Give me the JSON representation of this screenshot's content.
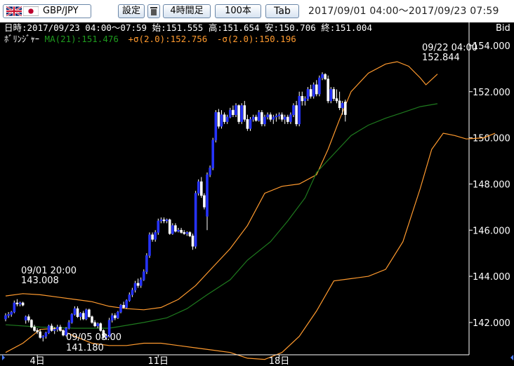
{
  "toolbar": {
    "pair": "GBP/JPY",
    "settings_label": "設定",
    "interval_label": "4時間足",
    "count_label": "100本",
    "tab_label": "Tab",
    "range": "2017/09/01 04:00〜2017/09/23 07:59"
  },
  "ohlc_line": "日時:2017/09/23 04:00〜07:59 始:151.555 高:151.654 安:150.706 終:151.004",
  "indicator": {
    "name": "ﾎﾞﾘﾝｼﾞｬｰ",
    "ma": "MA(21):151.476",
    "upper": "+σ(2.0):152.756",
    "lower": "-σ(2.0):150.196"
  },
  "price_type": "Bid",
  "colors": {
    "background": "#000000",
    "up_candle": "#2633ff",
    "down_candle": "#ffffff",
    "ma_line": "#1e7a1e",
    "bands": "#ff9a2e",
    "labels": "#ffffff"
  },
  "annotations": {
    "high1": {
      "time": "09/01 20:00",
      "price": "143.008"
    },
    "low": {
      "time": "09/05 08:00",
      "price": "141.180"
    },
    "high2": {
      "time": "09/22 04:00",
      "price": "152.844"
    }
  },
  "chart_data": {
    "type": "candlestick",
    "ylim": [
      140.6,
      155.0
    ],
    "y_ticks": [
      "154.000",
      "152.000",
      "150.000",
      "148.000",
      "146.000",
      "144.000",
      "142.000"
    ],
    "x_ticks": [
      {
        "label": "4日",
        "index": 11
      },
      {
        "label": "11日",
        "index": 53
      },
      {
        "label": "18日",
        "index": 95
      }
    ],
    "candles": [
      [
        142.15,
        142.4,
        142.05,
        142.3
      ],
      [
        142.3,
        142.45,
        142.2,
        142.35
      ],
      [
        142.35,
        142.5,
        142.25,
        142.45
      ],
      [
        142.45,
        142.95,
        142.4,
        142.85
      ],
      [
        142.85,
        143.01,
        142.7,
        142.8
      ],
      [
        142.8,
        142.9,
        142.7,
        142.85
      ],
      [
        142.85,
        142.9,
        142.7,
        142.75
      ],
      [
        142.1,
        142.3,
        141.95,
        142.25
      ],
      [
        142.25,
        142.35,
        142.0,
        142.1
      ],
      [
        142.1,
        142.15,
        141.75,
        141.8
      ],
      [
        141.8,
        141.9,
        141.6,
        141.65
      ],
      [
        141.65,
        141.75,
        141.5,
        141.6
      ],
      [
        141.6,
        141.7,
        141.3,
        141.35
      ],
      [
        141.35,
        141.45,
        141.18,
        141.4
      ],
      [
        141.4,
        141.6,
        141.3,
        141.55
      ],
      [
        141.55,
        141.9,
        141.5,
        141.85
      ],
      [
        141.85,
        141.95,
        141.6,
        141.65
      ],
      [
        141.65,
        141.8,
        141.5,
        141.7
      ],
      [
        141.7,
        141.9,
        141.6,
        141.8
      ],
      [
        141.8,
        141.9,
        141.6,
        141.65
      ],
      [
        141.65,
        141.7,
        141.4,
        141.45
      ],
      [
        141.45,
        141.8,
        141.4,
        141.75
      ],
      [
        141.75,
        142.1,
        141.7,
        142.0
      ],
      [
        142.0,
        142.4,
        141.95,
        142.35
      ],
      [
        142.35,
        142.7,
        142.3,
        142.6
      ],
      [
        142.6,
        142.7,
        142.2,
        142.25
      ],
      [
        142.25,
        142.45,
        142.1,
        142.4
      ],
      [
        142.4,
        142.5,
        142.1,
        142.15
      ],
      [
        142.15,
        142.6,
        142.1,
        142.55
      ],
      [
        142.55,
        142.6,
        142.2,
        142.25
      ],
      [
        142.25,
        142.3,
        141.95,
        142.0
      ],
      [
        142.0,
        142.1,
        141.8,
        141.85
      ],
      [
        141.85,
        142.0,
        141.75,
        141.95
      ],
      [
        141.95,
        142.0,
        141.6,
        141.65
      ],
      [
        141.65,
        141.7,
        141.3,
        141.35
      ],
      [
        141.35,
        141.5,
        141.25,
        141.4
      ],
      [
        141.4,
        142.2,
        141.35,
        142.1
      ],
      [
        142.1,
        142.4,
        142.0,
        142.3
      ],
      [
        142.3,
        142.4,
        142.1,
        142.2
      ],
      [
        142.2,
        142.5,
        142.15,
        142.45
      ],
      [
        142.45,
        142.8,
        142.4,
        142.75
      ],
      [
        142.75,
        142.9,
        142.6,
        142.65
      ],
      [
        142.65,
        143.0,
        142.6,
        142.95
      ],
      [
        142.95,
        143.3,
        142.9,
        143.2
      ],
      [
        143.2,
        143.5,
        143.1,
        143.4
      ],
      [
        143.4,
        143.8,
        143.3,
        143.7
      ],
      [
        143.7,
        143.9,
        143.5,
        143.6
      ],
      [
        143.6,
        143.95,
        143.5,
        143.85
      ],
      [
        143.85,
        144.3,
        143.8,
        144.2
      ],
      [
        144.2,
        145.0,
        144.1,
        144.9
      ],
      [
        144.9,
        145.9,
        144.8,
        145.8
      ],
      [
        145.8,
        145.9,
        145.5,
        145.6
      ],
      [
        145.6,
        146.0,
        145.5,
        145.9
      ],
      [
        145.9,
        146.5,
        145.8,
        146.4
      ],
      [
        146.4,
        146.55,
        146.3,
        146.45
      ],
      [
        146.45,
        146.55,
        146.3,
        146.4
      ],
      [
        146.4,
        146.5,
        146.3,
        146.45
      ],
      [
        146.45,
        146.5,
        145.8,
        145.85
      ],
      [
        145.85,
        146.3,
        145.8,
        146.2
      ],
      [
        146.2,
        146.3,
        145.9,
        145.95
      ],
      [
        145.95,
        146.1,
        145.9,
        146.0
      ],
      [
        146.0,
        146.1,
        145.85,
        145.9
      ],
      [
        145.9,
        146.0,
        145.8,
        145.85
      ],
      [
        145.85,
        145.95,
        145.75,
        145.9
      ],
      [
        145.9,
        145.95,
        145.7,
        145.75
      ],
      [
        145.75,
        145.85,
        145.15,
        145.3
      ],
      [
        145.3,
        147.7,
        145.2,
        147.6
      ],
      [
        147.6,
        148.2,
        147.5,
        148.1
      ],
      [
        148.1,
        148.3,
        147.4,
        147.5
      ],
      [
        147.5,
        147.6,
        146.9,
        147.0
      ],
      [
        146.6,
        148.5,
        146.0,
        148.4
      ],
      [
        148.4,
        148.8,
        148.3,
        148.7
      ],
      [
        148.7,
        150.0,
        148.6,
        149.9
      ],
      [
        149.9,
        151.2,
        149.8,
        151.1
      ],
      [
        151.1,
        151.25,
        150.4,
        150.5
      ],
      [
        150.5,
        151.2,
        150.4,
        151.0
      ],
      [
        151.0,
        151.1,
        150.6,
        150.7
      ],
      [
        150.7,
        151.0,
        150.6,
        150.9
      ],
      [
        150.9,
        151.3,
        150.85,
        151.2
      ],
      [
        151.2,
        151.4,
        150.9,
        151.0
      ],
      [
        151.0,
        151.5,
        150.9,
        151.4
      ],
      [
        151.4,
        151.45,
        150.6,
        150.7
      ],
      [
        150.7,
        151.5,
        150.6,
        151.4
      ],
      [
        151.4,
        151.6,
        150.7,
        150.8
      ],
      [
        150.8,
        151.0,
        150.3,
        150.4
      ],
      [
        150.4,
        150.9,
        150.3,
        150.8
      ],
      [
        150.8,
        151.0,
        150.7,
        150.9
      ],
      [
        150.9,
        151.0,
        150.7,
        150.75
      ],
      [
        150.75,
        151.2,
        150.7,
        151.1
      ],
      [
        151.1,
        151.2,
        150.5,
        150.6
      ],
      [
        150.6,
        151.0,
        150.5,
        150.9
      ],
      [
        150.9,
        151.1,
        150.8,
        151.0
      ],
      [
        151.0,
        151.1,
        150.7,
        150.8
      ],
      [
        150.8,
        151.0,
        150.6,
        150.9
      ],
      [
        150.9,
        151.05,
        150.7,
        150.95
      ],
      [
        150.95,
        151.1,
        150.8,
        151.0
      ],
      [
        151.0,
        151.1,
        150.7,
        150.8
      ],
      [
        150.8,
        151.0,
        150.6,
        150.9
      ],
      [
        150.9,
        151.0,
        150.6,
        150.7
      ],
      [
        150.7,
        151.1,
        150.6,
        151.0
      ],
      [
        151.0,
        151.5,
        150.9,
        151.4
      ],
      [
        151.4,
        151.6,
        150.5,
        150.6
      ],
      [
        150.6,
        152.0,
        150.5,
        151.8
      ],
      [
        151.8,
        152.0,
        151.4,
        151.6
      ],
      [
        151.6,
        151.8,
        151.4,
        151.7
      ],
      [
        151.7,
        152.2,
        151.6,
        152.1
      ],
      [
        152.1,
        152.3,
        151.7,
        151.8
      ],
      [
        151.8,
        152.4,
        151.7,
        152.3
      ],
      [
        152.3,
        152.5,
        151.8,
        151.9
      ],
      [
        151.9,
        152.7,
        151.8,
        152.6
      ],
      [
        152.6,
        152.84,
        152.5,
        152.75
      ],
      [
        152.75,
        152.8,
        152.5,
        152.55
      ],
      [
        152.55,
        152.7,
        151.5,
        151.6
      ],
      [
        151.6,
        152.2,
        151.5,
        152.1
      ],
      [
        152.1,
        152.2,
        151.6,
        151.7
      ],
      [
        151.7,
        152.1,
        151.5,
        151.6
      ],
      [
        151.6,
        152.0,
        151.2,
        151.3
      ],
      [
        151.3,
        151.6,
        151.0,
        151.5
      ],
      [
        151.555,
        151.654,
        150.706,
        151.004
      ]
    ],
    "ma": [
      [
        0,
        141.9
      ],
      [
        12,
        141.8
      ],
      [
        24,
        141.75
      ],
      [
        36,
        141.75
      ],
      [
        48,
        142.0
      ],
      [
        56,
        142.2
      ],
      [
        63,
        142.6
      ],
      [
        70,
        143.2
      ],
      [
        78,
        143.85
      ],
      [
        84,
        144.7
      ],
      [
        92,
        145.5
      ],
      [
        98,
        146.4
      ],
      [
        104,
        147.4
      ],
      [
        108,
        148.5
      ],
      [
        114,
        149.3
      ],
      [
        120,
        150.1
      ],
      [
        126,
        150.55
      ],
      [
        132,
        150.85
      ],
      [
        138,
        151.1
      ],
      [
        144,
        151.35
      ],
      [
        150,
        151.48
      ]
    ],
    "upper": [
      [
        0,
        143.15
      ],
      [
        6,
        143.25
      ],
      [
        12,
        143.2
      ],
      [
        18,
        143.1
      ],
      [
        24,
        143.0
      ],
      [
        30,
        142.9
      ],
      [
        36,
        142.7
      ],
      [
        42,
        142.6
      ],
      [
        48,
        142.55
      ],
      [
        54,
        142.65
      ],
      [
        60,
        143.0
      ],
      [
        66,
        143.6
      ],
      [
        72,
        144.4
      ],
      [
        78,
        145.2
      ],
      [
        84,
        146.2
      ],
      [
        90,
        147.6
      ],
      [
        96,
        147.9
      ],
      [
        102,
        148.0
      ],
      [
        108,
        148.4
      ],
      [
        112,
        149.5
      ],
      [
        116,
        150.8
      ],
      [
        120,
        152.0
      ],
      [
        126,
        152.8
      ],
      [
        132,
        153.2
      ],
      [
        136,
        153.3
      ],
      [
        140,
        153.1
      ],
      [
        144,
        152.6
      ],
      [
        146,
        152.3
      ],
      [
        150,
        152.76
      ]
    ],
    "lower": [
      [
        0,
        140.7
      ],
      [
        6,
        141.1
      ],
      [
        12,
        141.7
      ],
      [
        18,
        141.75
      ],
      [
        24,
        141.4
      ],
      [
        30,
        141.1
      ],
      [
        36,
        141.0
      ],
      [
        42,
        141.0
      ],
      [
        48,
        141.1
      ],
      [
        54,
        141.1
      ],
      [
        60,
        141.0
      ],
      [
        66,
        140.9
      ],
      [
        72,
        140.8
      ],
      [
        78,
        140.7
      ],
      [
        84,
        140.45
      ],
      [
        90,
        140.4
      ],
      [
        96,
        140.7
      ],
      [
        102,
        141.4
      ],
      [
        108,
        142.5
      ],
      [
        114,
        143.8
      ],
      [
        120,
        143.9
      ],
      [
        126,
        144.0
      ],
      [
        132,
        144.3
      ],
      [
        138,
        145.5
      ],
      [
        144,
        147.8
      ],
      [
        148,
        149.5
      ],
      [
        152,
        150.2
      ],
      [
        156,
        150.1
      ],
      [
        160,
        149.95
      ],
      [
        166,
        150.0
      ],
      [
        170,
        150.196
      ]
    ]
  }
}
